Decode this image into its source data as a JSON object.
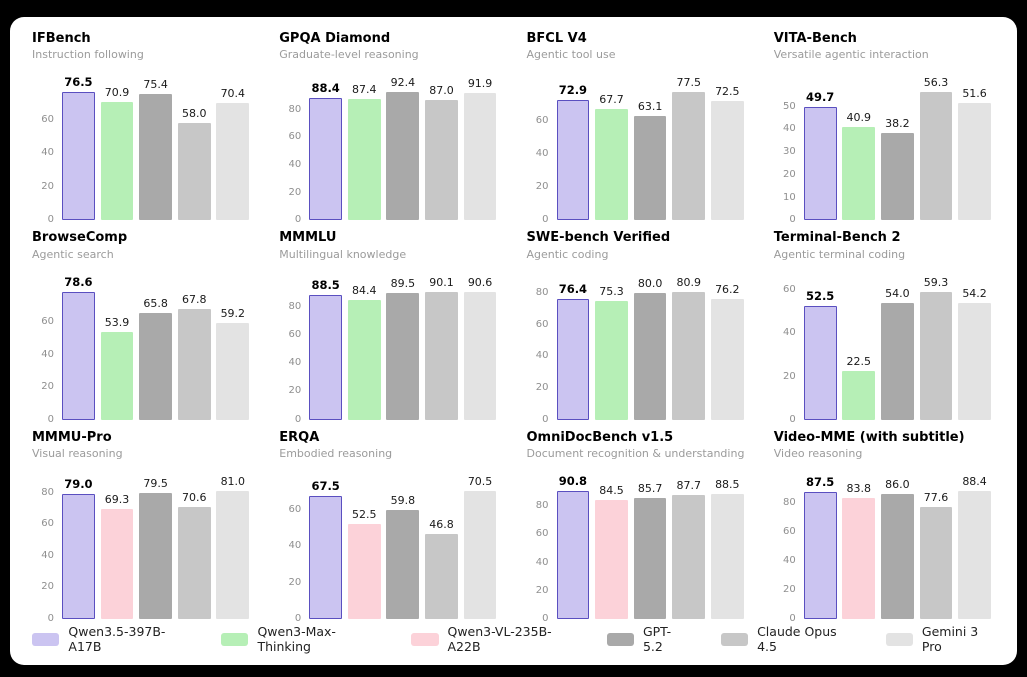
{
  "legend": {
    "items": [
      {
        "label": "Qwen3.5-397B-A17B",
        "color": "#cbc4f1",
        "border": "#5a4fc0"
      },
      {
        "label": "Qwen3-Max-Thinking",
        "color": "#b6efb6",
        "border": ""
      },
      {
        "label": "Qwen3-VL-235B-A22B",
        "color": "#fcd2d9",
        "border": ""
      },
      {
        "label": "GPT-5.2",
        "color": "#a9a9a9",
        "border": ""
      },
      {
        "label": "Claude Opus 4.5",
        "color": "#c7c7c7",
        "border": ""
      },
      {
        "label": "Gemini 3 Pro",
        "color": "#e3e3e3",
        "border": ""
      }
    ]
  },
  "chart_data": [
    {
      "type": "bar",
      "title": "IFBench",
      "subtitle": "Instruction following",
      "yticks": [
        0,
        20,
        40,
        60
      ],
      "model_indexes": [
        0,
        1,
        3,
        4,
        5
      ],
      "values": [
        "76.5",
        "70.9",
        "75.4",
        "58.0",
        "70.4"
      ],
      "bold_index": 0,
      "grid": false,
      "legend_position": "bottom"
    },
    {
      "type": "bar",
      "title": "GPQA Diamond",
      "subtitle": "Graduate-level reasoning",
      "yticks": [
        0,
        20,
        40,
        60,
        80
      ],
      "model_indexes": [
        0,
        1,
        3,
        4,
        5
      ],
      "values": [
        "88.4",
        "87.4",
        "92.4",
        "87.0",
        "91.9"
      ],
      "bold_index": 0,
      "grid": false,
      "legend_position": "bottom"
    },
    {
      "type": "bar",
      "title": "BFCL V4",
      "subtitle": "Agentic tool use",
      "yticks": [
        0,
        20,
        40,
        60
      ],
      "model_indexes": [
        0,
        1,
        3,
        4,
        5
      ],
      "values": [
        "72.9",
        "67.7",
        "63.1",
        "77.5",
        "72.5"
      ],
      "bold_index": 0,
      "grid": false,
      "legend_position": "bottom"
    },
    {
      "type": "bar",
      "title": "VITA-Bench",
      "subtitle": "Versatile agentic interaction",
      "yticks": [
        0,
        10,
        20,
        30,
        40,
        50
      ],
      "model_indexes": [
        0,
        1,
        3,
        4,
        5
      ],
      "values": [
        "49.7",
        "40.9",
        "38.2",
        "56.3",
        "51.6"
      ],
      "bold_index": 0,
      "grid": false,
      "legend_position": "bottom"
    },
    {
      "type": "bar",
      "title": "BrowseComp",
      "subtitle": "Agentic search",
      "yticks": [
        0,
        20,
        40,
        60
      ],
      "model_indexes": [
        0,
        1,
        3,
        4,
        5
      ],
      "values": [
        "78.6",
        "53.9",
        "65.8",
        "67.8",
        "59.2"
      ],
      "bold_index": 0,
      "grid": false,
      "legend_position": "bottom"
    },
    {
      "type": "bar",
      "title": "MMMLU",
      "subtitle": "Multilingual knowledge",
      "yticks": [
        0,
        20,
        40,
        60,
        80
      ],
      "model_indexes": [
        0,
        1,
        3,
        4,
        5
      ],
      "values": [
        "88.5",
        "84.4",
        "89.5",
        "90.1",
        "90.6"
      ],
      "bold_index": 0,
      "grid": false,
      "legend_position": "bottom"
    },
    {
      "type": "bar",
      "title": "SWE-bench Verified",
      "subtitle": "Agentic coding",
      "yticks": [
        0,
        20,
        40,
        60,
        80
      ],
      "model_indexes": [
        0,
        1,
        3,
        4,
        5
      ],
      "values": [
        "76.4",
        "75.3",
        "80.0",
        "80.9",
        "76.2"
      ],
      "bold_index": 0,
      "grid": false,
      "legend_position": "bottom"
    },
    {
      "type": "bar",
      "title": "Terminal-Bench 2",
      "subtitle": "Agentic terminal coding",
      "yticks": [
        0,
        20,
        40,
        60
      ],
      "model_indexes": [
        0,
        1,
        3,
        4,
        5
      ],
      "values": [
        "52.5",
        "22.5",
        "54.0",
        "59.3",
        "54.2"
      ],
      "bold_index": 0,
      "grid": false,
      "legend_position": "bottom"
    },
    {
      "type": "bar",
      "title": "MMMU-Pro",
      "subtitle": "Visual reasoning",
      "yticks": [
        0,
        20,
        40,
        60,
        80
      ],
      "model_indexes": [
        0,
        2,
        3,
        4,
        5
      ],
      "values": [
        "79.0",
        "69.3",
        "79.5",
        "70.6",
        "81.0"
      ],
      "bold_index": 0,
      "grid": false,
      "legend_position": "bottom"
    },
    {
      "type": "bar",
      "title": "ERQA",
      "subtitle": "Embodied reasoning",
      "yticks": [
        0,
        20,
        40,
        60
      ],
      "model_indexes": [
        0,
        2,
        3,
        4,
        5
      ],
      "values": [
        "67.5",
        "52.5",
        "59.8",
        "46.8",
        "70.5"
      ],
      "bold_index": 0,
      "grid": false,
      "legend_position": "bottom"
    },
    {
      "type": "bar",
      "title": "OmniDocBench v1.5",
      "subtitle": "Document recognition & understanding",
      "yticks": [
        0,
        20,
        40,
        60,
        80
      ],
      "model_indexes": [
        0,
        2,
        3,
        4,
        5
      ],
      "values": [
        "90.8",
        "84.5",
        "85.7",
        "87.7",
        "88.5"
      ],
      "bold_index": 0,
      "grid": false,
      "legend_position": "bottom"
    },
    {
      "type": "bar",
      "title": "Video-MME (with subtitle)",
      "subtitle": "Video reasoning",
      "yticks": [
        0,
        20,
        40,
        60,
        80
      ],
      "model_indexes": [
        0,
        2,
        3,
        4,
        5
      ],
      "values": [
        "87.5",
        "83.8",
        "86.0",
        "77.6",
        "88.4"
      ],
      "bold_index": 0,
      "grid": false,
      "legend_position": "bottom"
    }
  ]
}
